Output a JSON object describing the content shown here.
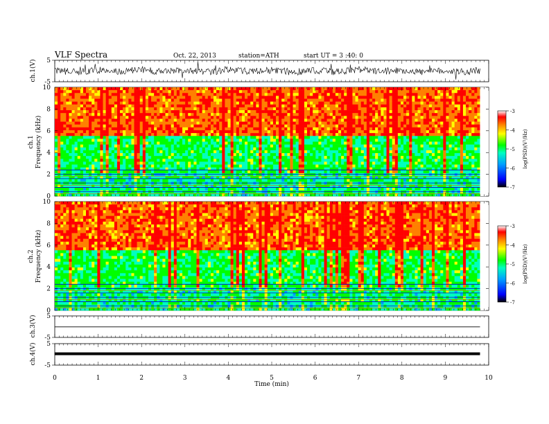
{
  "header": {
    "title": "VLF  Spectra",
    "date": "Oct. 22, 2013",
    "station": "station=ATH",
    "start": "start  UT  =   3 :40: 0"
  },
  "colors": {
    "palette": [
      "#000000",
      "#0000ff",
      "#00a0ff",
      "#00ffc0",
      "#00ff00",
      "#ffff00",
      "#ff8000",
      "#ff0000",
      "#ffffff"
    ]
  },
  "chart_data": [
    {
      "type": "line",
      "panel": "ch1-waveform",
      "ylabel": "ch.1(V)",
      "ylim": [
        -5,
        5
      ],
      "yticks": [
        "5",
        "-5"
      ],
      "x": [
        0,
        0.5,
        1,
        1.5,
        2,
        2.5,
        3,
        3.5,
        4,
        4.5,
        5,
        5.5,
        6,
        6.5,
        7,
        7.5,
        8,
        8.5,
        9,
        9.5,
        9.8
      ],
      "values": [
        0.2,
        -0.5,
        0.4,
        -0.3,
        0.6,
        -0.4,
        0.3,
        -0.6,
        0.5,
        -0.2,
        0.4,
        -0.5,
        0.3,
        -0.4,
        0.6,
        -0.3,
        0.4,
        -0.5,
        0.2,
        -0.4,
        0.3
      ]
    },
    {
      "type": "heatmap",
      "panel": "ch1-spectrogram",
      "ylabel": "ch.1\nFrequency  (kHz)",
      "ylabel_line1": "ch.1",
      "ylabel_line2": "Frequency  (kHz)",
      "ylim": [
        0,
        10
      ],
      "yticks": [
        "0",
        "2",
        "4",
        "6",
        "8",
        "10"
      ],
      "colorbar": {
        "label": "log(PSD)(V²/Hz)",
        "ticks": [
          "-3",
          "-4",
          "-5",
          "-6",
          "-7"
        ],
        "range": [
          -7,
          -3
        ]
      }
    },
    {
      "type": "heatmap",
      "panel": "ch2-spectrogram",
      "ylabel_line1": "ch.2",
      "ylabel_line2": "Frequency  (kHz)",
      "ylim": [
        0,
        10
      ],
      "yticks": [
        "0",
        "2",
        "4",
        "6",
        "8",
        "10"
      ],
      "colorbar": {
        "label": "log(PSD)(V²/Hz)",
        "ticks": [
          "-3",
          "-4",
          "-5",
          "-6",
          "-7"
        ],
        "range": [
          -7,
          -3
        ]
      }
    },
    {
      "type": "line",
      "panel": "ch3-waveform",
      "ylabel": "ch.3(V)",
      "ylim": [
        -5,
        5
      ],
      "yticks": [
        "5",
        "-5"
      ],
      "x": [
        0,
        9.8
      ],
      "values": [
        -0.1,
        -0.1
      ]
    },
    {
      "type": "line",
      "panel": "ch4-waveform",
      "ylabel": "ch.4(V)",
      "ylim": [
        -5,
        5
      ],
      "yticks": [
        "5",
        "-5"
      ],
      "x": [
        0,
        9.8
      ],
      "values": [
        0.3,
        0.3
      ]
    }
  ],
  "xaxis": {
    "label": "Time  (min)",
    "xlim": [
      0,
      10
    ],
    "ticks": [
      "0",
      "1",
      "2",
      "3",
      "4",
      "5",
      "6",
      "7",
      "8",
      "9",
      "10"
    ]
  }
}
